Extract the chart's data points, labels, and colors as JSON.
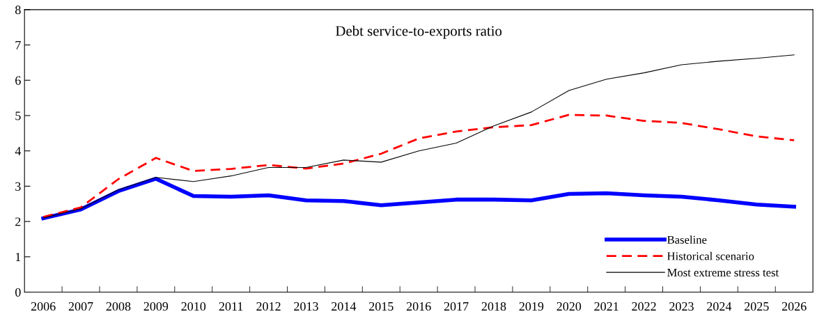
{
  "chart_data": {
    "type": "line",
    "title": "Debt service-to-exports ratio",
    "categories": [
      "2006",
      "2007",
      "2008",
      "2009",
      "2010",
      "2011",
      "2012",
      "2013",
      "2014",
      "2015",
      "2016",
      "2017",
      "2018",
      "2019",
      "2020",
      "2021",
      "2022",
      "2023",
      "2024",
      "2025",
      "2026"
    ],
    "series": [
      {
        "name": "Baseline",
        "color": "#0000ff",
        "line_style": "solid",
        "values": [
          2.09,
          2.34,
          2.86,
          3.21,
          2.72,
          2.7,
          2.74,
          2.6,
          2.58,
          2.46,
          2.54,
          2.62,
          2.62,
          2.6,
          2.78,
          2.8,
          2.74,
          2.7,
          2.6,
          2.48,
          2.42
        ]
      },
      {
        "name": "Historical scenario",
        "color": "#ff0000",
        "line_style": "dashed",
        "values": [
          2.13,
          2.4,
          3.2,
          3.8,
          3.43,
          3.49,
          3.6,
          3.5,
          3.64,
          3.92,
          4.35,
          4.55,
          4.67,
          4.73,
          5.02,
          5.0,
          4.85,
          4.79,
          4.61,
          4.41,
          4.3
        ]
      },
      {
        "name": "Most extreme stress test",
        "color": "#000000",
        "line_style": "solid",
        "values": [
          2.1,
          2.36,
          2.9,
          3.25,
          3.13,
          3.29,
          3.53,
          3.53,
          3.74,
          3.68,
          4.0,
          4.22,
          4.71,
          5.1,
          5.71,
          6.03,
          6.21,
          6.44,
          6.54,
          6.62,
          6.72
        ]
      }
    ],
    "ylim": [
      0,
      8
    ],
    "yticks": [
      0,
      1,
      2,
      3,
      4,
      5,
      6,
      7,
      8
    ],
    "legend": "bottom right",
    "grid": false
  }
}
